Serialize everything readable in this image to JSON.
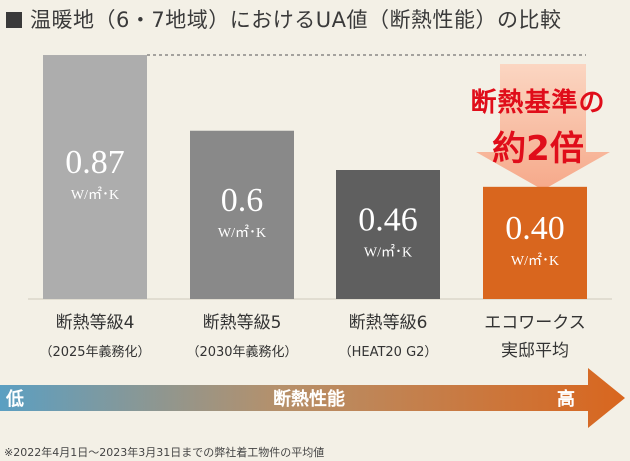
{
  "title": "温暖地（6・7地域）におけるUA値（断熱性能）の比較",
  "chart_data": {
    "type": "bar",
    "categories": [
      [
        "断熱等級4",
        "（2025年義務化）"
      ],
      [
        "断熱等級5",
        "（2030年義務化）"
      ],
      [
        "断熱等級6",
        "（HEAT20 G2）"
      ],
      [
        "エコワークス",
        "実邸平均"
      ]
    ],
    "values": [
      0.87,
      0.6,
      0.46,
      0.4
    ],
    "value_labels": [
      "0.87",
      "0.6",
      "0.46",
      "0.40"
    ],
    "unit": "W/㎡･K",
    "ylim": [
      0,
      0.92
    ],
    "bar_colors": [
      "#adadad",
      "#898989",
      "#5f5f5f",
      "#d9661e"
    ],
    "reference_line": 0.87
  },
  "callout": {
    "line1": "断熱基準の",
    "line2": "約2倍",
    "color": "#e00d1a"
  },
  "axis_arrow": {
    "low": "低",
    "label": "断熱性能",
    "high": "高"
  },
  "footnote": "※2022年4月1日～2023年3月31日までの弊社着工物件の平均値"
}
